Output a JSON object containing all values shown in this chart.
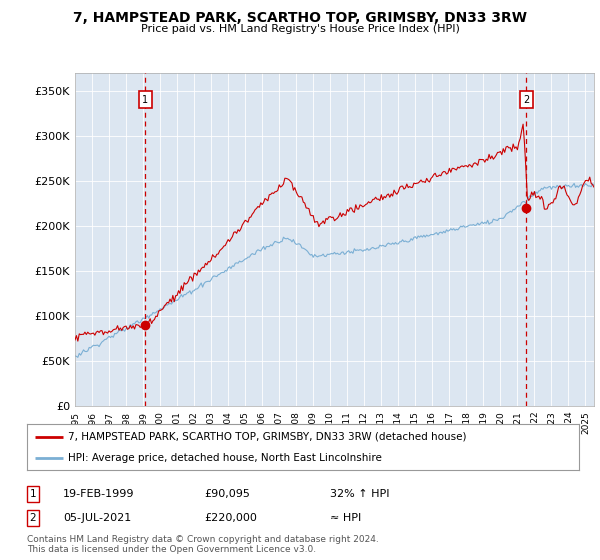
{
  "title": "7, HAMPSTEAD PARK, SCARTHO TOP, GRIMSBY, DN33 3RW",
  "subtitle": "Price paid vs. HM Land Registry's House Price Index (HPI)",
  "legend_line1": "7, HAMPSTEAD PARK, SCARTHO TOP, GRIMSBY, DN33 3RW (detached house)",
  "legend_line2": "HPI: Average price, detached house, North East Lincolnshire",
  "annotation1_date": "19-FEB-1999",
  "annotation1_price": "£90,095",
  "annotation1_hpi": "32% ↑ HPI",
  "annotation2_date": "05-JUL-2021",
  "annotation2_price": "£220,000",
  "annotation2_hpi": "≈ HPI",
  "footer": "Contains HM Land Registry data © Crown copyright and database right 2024.\nThis data is licensed under the Open Government Licence v3.0.",
  "ylim": [
    0,
    370000
  ],
  "yticks": [
    0,
    50000,
    100000,
    150000,
    200000,
    250000,
    300000,
    350000
  ],
  "ytick_labels": [
    "£0",
    "£50K",
    "£100K",
    "£150K",
    "£200K",
    "£250K",
    "£300K",
    "£350K"
  ],
  "house_color": "#cc0000",
  "hpi_color": "#7bafd4",
  "plot_bg": "#dce6f1",
  "marker1_x": 1999.12,
  "marker1_y": 90095,
  "marker2_x": 2021.51,
  "marker2_y": 220000,
  "xmin": 1995.0,
  "xmax": 2025.5
}
